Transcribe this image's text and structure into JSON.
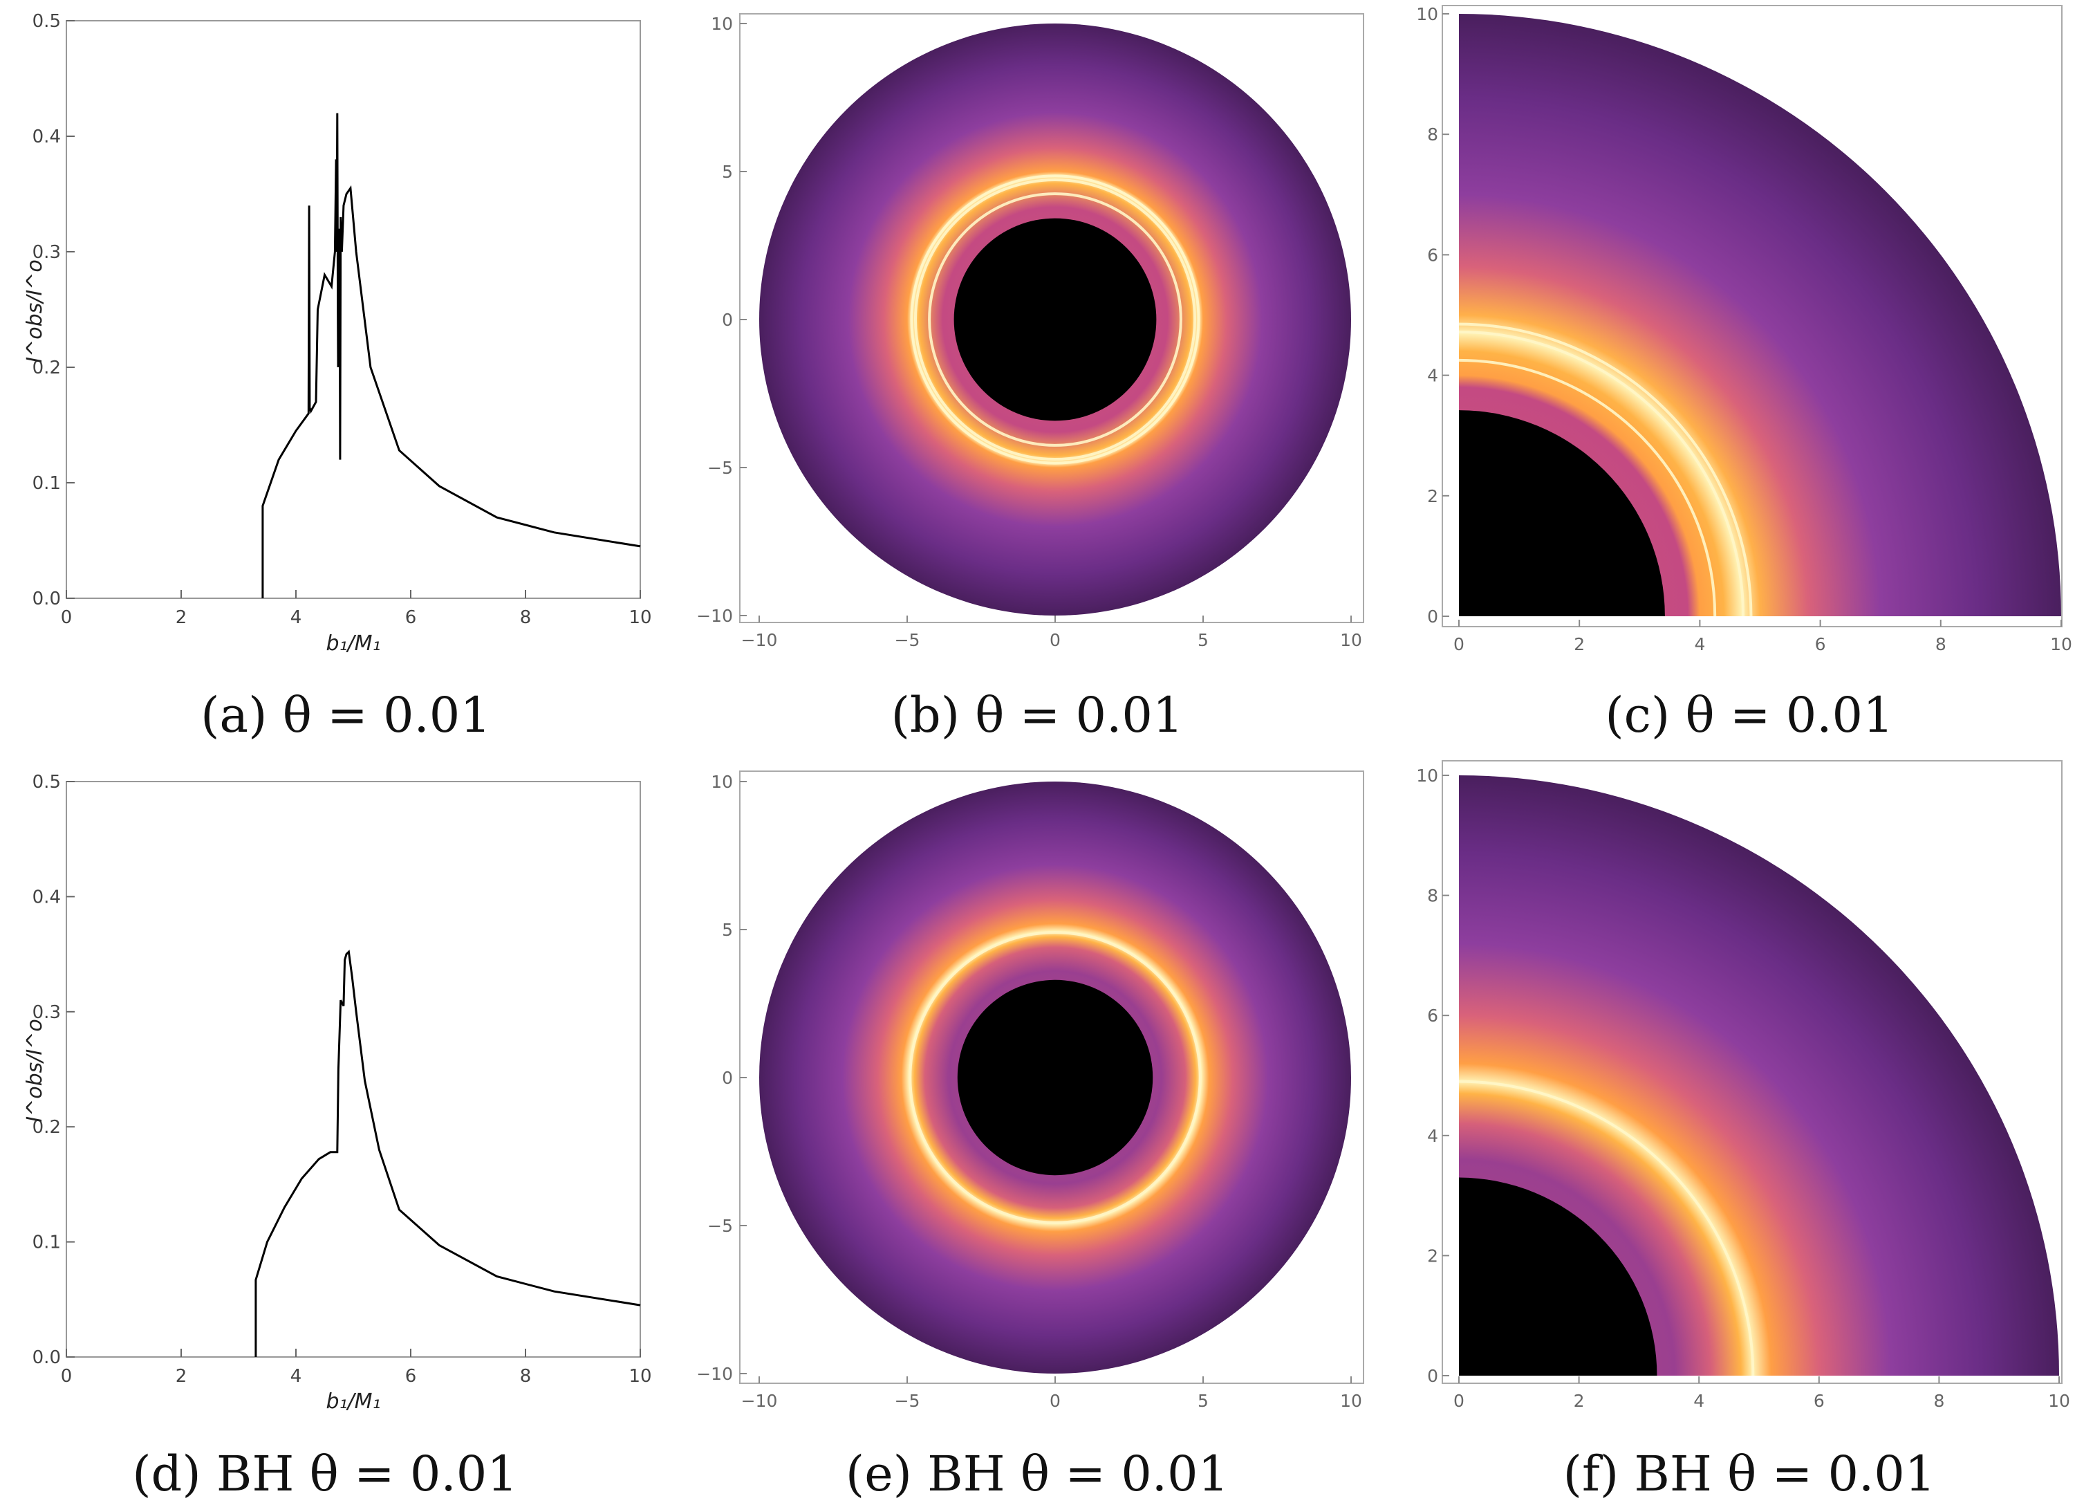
{
  "colors": {
    "curve": "#000000",
    "frame": "#999999",
    "shadow": "#000000",
    "ring_bright": "#fff6c8",
    "ring_glow": "#ffb347",
    "disk_outer": "#4a2060",
    "disk_mid": "#7a3a9a",
    "disk_inner": "#c9527a"
  },
  "chart_data": [
    {
      "id": "a",
      "type": "line",
      "caption": "(a) θ = 0.01",
      "xlabel": "b₁/M₁",
      "ylabel": "I^obs/I^o",
      "xlim": [
        0,
        10
      ],
      "ylim": [
        0,
        0.5
      ],
      "xticks": [
        0,
        2,
        4,
        6,
        8,
        10
      ],
      "yticks": [
        0.0,
        0.1,
        0.2,
        0.3,
        0.4,
        0.5
      ],
      "x": [
        3.42,
        3.42,
        3.7,
        4.0,
        4.22,
        4.23,
        4.24,
        4.26,
        4.35,
        4.38,
        4.5,
        4.62,
        4.68,
        4.7,
        4.71,
        4.72,
        4.73,
        4.735,
        4.74,
        4.76,
        4.77,
        4.78,
        4.8,
        4.83,
        4.88,
        4.95,
        5.05,
        5.3,
        5.8,
        6.5,
        7.5,
        8.5,
        10.0
      ],
      "y": [
        0.0,
        0.08,
        0.12,
        0.145,
        0.16,
        0.34,
        0.165,
        0.162,
        0.17,
        0.25,
        0.28,
        0.27,
        0.3,
        0.38,
        0.3,
        0.42,
        0.25,
        0.2,
        0.3,
        0.32,
        0.12,
        0.33,
        0.3,
        0.34,
        0.35,
        0.355,
        0.3,
        0.2,
        0.128,
        0.097,
        0.07,
        0.057,
        0.045
      ]
    },
    {
      "id": "b",
      "type": "heatmap",
      "caption": "(b) θ = 0.01",
      "xlim": [
        -10,
        10
      ],
      "ylim": [
        -10,
        10
      ],
      "xticks": [
        -10,
        -5,
        0,
        5,
        10
      ],
      "yticks": [
        -10,
        -5,
        0,
        5,
        10
      ],
      "shadow_radius": 3.42,
      "disk_radius": 10,
      "rings": [
        4.25,
        4.72,
        4.85
      ]
    },
    {
      "id": "c",
      "type": "heatmap",
      "caption": "(c) θ = 0.01",
      "xlim": [
        0,
        10
      ],
      "ylim": [
        0,
        10
      ],
      "xticks": [
        0,
        2,
        4,
        6,
        8,
        10
      ],
      "yticks": [
        0,
        2,
        4,
        6,
        8,
        10
      ],
      "shadow_radius": 3.42,
      "disk_radius": 10,
      "rings": [
        4.25,
        4.72,
        4.85
      ]
    },
    {
      "id": "d",
      "type": "line",
      "caption": "(d) BH θ = 0.01",
      "xlabel": "b₁/M₁",
      "ylabel": "I^obs/I^o",
      "xlim": [
        0,
        10
      ],
      "ylim": [
        0,
        0.5
      ],
      "xticks": [
        0,
        2,
        4,
        6,
        8,
        10
      ],
      "yticks": [
        0.0,
        0.1,
        0.2,
        0.3,
        0.4,
        0.5
      ],
      "x": [
        3.3,
        3.3,
        3.5,
        3.8,
        4.1,
        4.4,
        4.6,
        4.72,
        4.74,
        4.78,
        4.83,
        4.85,
        4.88,
        4.92,
        4.98,
        5.05,
        5.2,
        5.45,
        5.8,
        6.5,
        7.5,
        8.5,
        10.0
      ],
      "y": [
        0.0,
        0.067,
        0.1,
        0.13,
        0.155,
        0.172,
        0.178,
        0.178,
        0.25,
        0.31,
        0.305,
        0.345,
        0.35,
        0.352,
        0.33,
        0.3,
        0.24,
        0.18,
        0.128,
        0.097,
        0.07,
        0.057,
        0.045
      ]
    },
    {
      "id": "e",
      "type": "heatmap",
      "caption": "(e) BH θ = 0.01",
      "xlim": [
        -10,
        10
      ],
      "ylim": [
        -10,
        10
      ],
      "xticks": [
        -10,
        -5,
        0,
        5,
        10
      ],
      "yticks": [
        -10,
        -5,
        0,
        5,
        10
      ],
      "shadow_radius": 3.3,
      "disk_radius": 10,
      "rings": [
        4.9
      ]
    },
    {
      "id": "f",
      "type": "heatmap",
      "caption": "(f) BH θ = 0.01",
      "xlim": [
        0,
        10
      ],
      "ylim": [
        0,
        10
      ],
      "xticks": [
        0,
        2,
        4,
        6,
        8,
        10
      ],
      "yticks": [
        0,
        2,
        4,
        6,
        8,
        10
      ],
      "shadow_radius": 3.3,
      "disk_radius": 10,
      "rings": [
        4.9
      ]
    }
  ]
}
